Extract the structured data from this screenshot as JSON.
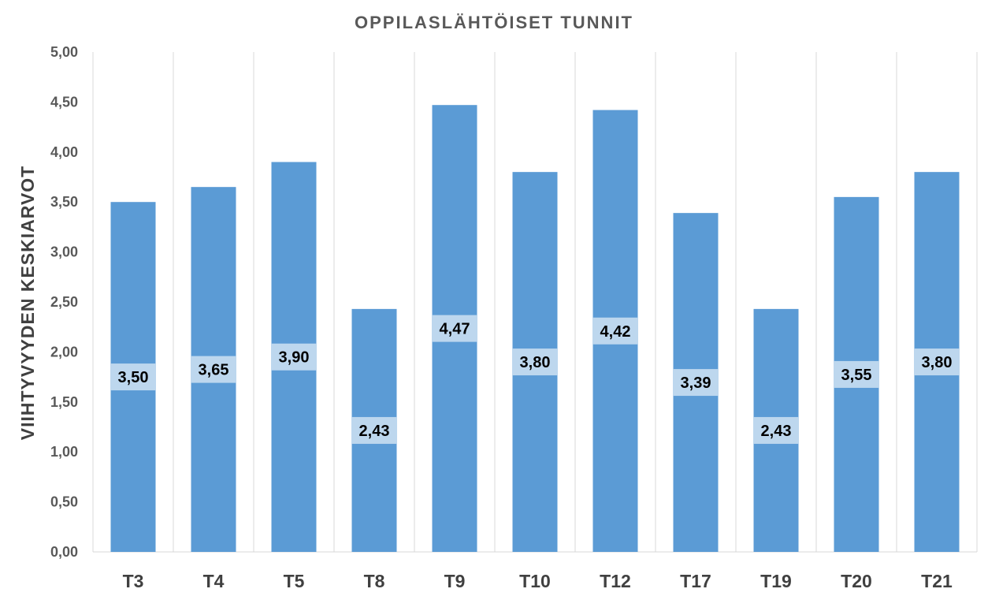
{
  "chart_data": {
    "type": "bar",
    "title": "OPPILASLÄHTÖISET TUNNIT",
    "xlabel": "",
    "ylabel": "VIIHTYVYYDEN KESKIARVOT",
    "categories": [
      "T3",
      "T4",
      "T5",
      "T8",
      "T9",
      "T10",
      "T12",
      "T17",
      "T19",
      "T20",
      "T21"
    ],
    "values": [
      3.5,
      3.65,
      3.9,
      2.43,
      4.47,
      3.8,
      4.42,
      3.39,
      2.43,
      3.55,
      3.8
    ],
    "data_labels": [
      "3,50",
      "3,65",
      "3,90",
      "2,43",
      "4,47",
      "3,80",
      "4,42",
      "3,39",
      "2,43",
      "3,55",
      "3,80"
    ],
    "yticks": [
      0,
      0.5,
      1,
      1.5,
      2,
      2.5,
      3,
      3.5,
      4,
      4.5,
      5
    ],
    "ytick_labels": [
      "0,00",
      "0,50",
      "1,00",
      "1,50",
      "2,00",
      "2,50",
      "3,00",
      "3,50",
      "4,00",
      "4,50",
      "5,00"
    ],
    "ylim": [
      0,
      5
    ],
    "grid": "vertical",
    "legend": "none",
    "colors": {
      "bar": "#5B9BD5",
      "label_box": "#BDD7EE",
      "grid": "#D9D9D9",
      "text": "#595959"
    }
  }
}
